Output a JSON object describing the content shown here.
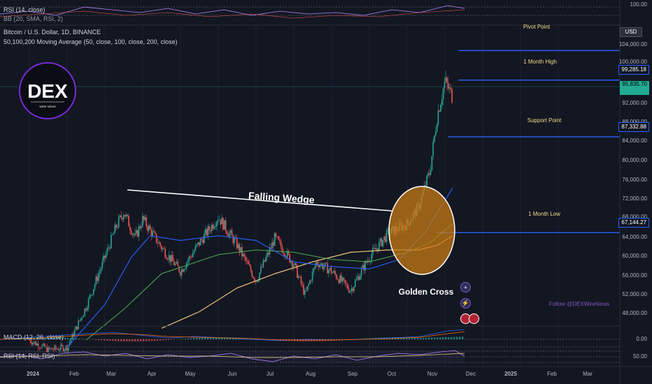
{
  "symbol_title": "Bitcoin / U.S. Dollar, 1D, BINANCE",
  "ma_legend": "50,100,200 Moving Average (50, close, 100, close, 200, close)",
  "top_indicators": {
    "rsi": "RSI (14, close)",
    "bb": "BB (20, SMA, RSI, 2)"
  },
  "bottom_indicators": {
    "macd": "MACD (12, 26, close)",
    "rsi": "RSI (14, RSI, RSI)"
  },
  "currency_button": "USD",
  "levels": {
    "pivot": "Pivot Point",
    "month_high": "1 Month High",
    "support": "Support Point",
    "month_low": "1 Month Low"
  },
  "price_tags": {
    "month_high": "99,285.18",
    "current": "95,835.70",
    "support": "87,332.88",
    "month_low": "67,144.27"
  },
  "annotations": {
    "falling_wedge": "Falling Wedge",
    "golden_cross": "Golden Cross",
    "follow": "Follow @DEXWireNews"
  },
  "logo": {
    "text": "DEX",
    "subtext": "WIRE NEWS"
  },
  "price_axis": [
    "104,000.00",
    "100,000.00",
    "92,000.00",
    "88,000.00",
    "84,000.00",
    "80,000.00",
    "76,000.00",
    "72,000.00",
    "68,000.00",
    "64,000.00",
    "60,000.00",
    "56,000.00",
    "52,000.00",
    "48,000.00"
  ],
  "top_axis_label": "100.00",
  "macd_axis_label": "0.00",
  "rsi_axis_label": "50.00",
  "time_axis": [
    "2024",
    "Feb",
    "Mar",
    "Apr",
    "May",
    "Jun",
    "Jul",
    "Aug",
    "Sep",
    "Oct",
    "Nov",
    "Dec",
    "2025",
    "Feb",
    "Mar"
  ],
  "colors": {
    "bg": "#131722",
    "up": "#26a69a",
    "down": "#ef5350",
    "ma50": "#2962ff",
    "ma100": "#4caf50",
    "ma200": "#f0c27b",
    "level": "#2962ff",
    "accent": "#f5d98b"
  },
  "chart_data": {
    "type": "candlestick",
    "price_range": [
      46000,
      108000
    ],
    "time_labels": [
      "2024",
      "Feb",
      "Mar",
      "Apr",
      "May",
      "Jun",
      "Jul",
      "Aug",
      "Sep",
      "Oct",
      "Nov",
      "Dec",
      "2025",
      "Feb",
      "Mar"
    ],
    "close_path": [
      [
        0,
        44500
      ],
      [
        0.5,
        42500
      ],
      [
        1,
        43000
      ],
      [
        1.5,
        51500
      ],
      [
        2,
        62000
      ],
      [
        2.3,
        68500
      ],
      [
        2.5,
        71500
      ],
      [
        2.8,
        66000
      ],
      [
        3,
        70000
      ],
      [
        3.5,
        64000
      ],
      [
        4,
        59000
      ],
      [
        4.5,
        65000
      ],
      [
        5,
        70500
      ],
      [
        5.5,
        64500
      ],
      [
        6,
        57000
      ],
      [
        6.5,
        66000
      ],
      [
        7,
        60500
      ],
      [
        7.3,
        54000
      ],
      [
        7.6,
        61000
      ],
      [
        8,
        59000
      ],
      [
        8.5,
        55000
      ],
      [
        9,
        62000
      ],
      [
        9.5,
        67000
      ],
      [
        10,
        69000
      ],
      [
        10.3,
        72500
      ],
      [
        10.6,
        80000
      ],
      [
        10.8,
        92000
      ],
      [
        11,
        99000
      ],
      [
        11.2,
        95800
      ]
    ],
    "moving_averages": {
      "ma50": [
        [
          1,
          43000
        ],
        [
          2,
          52000
        ],
        [
          2.7,
          62000
        ],
        [
          3.2,
          66500
        ],
        [
          4,
          65500
        ],
        [
          5,
          66500
        ],
        [
          6,
          65500
        ],
        [
          7,
          61000
        ],
        [
          8,
          60000
        ],
        [
          9,
          59500
        ],
        [
          9.8,
          61500
        ],
        [
          10.5,
          67500
        ],
        [
          11.2,
          76500
        ]
      ],
      "ma100": [
        [
          1.5,
          44500
        ],
        [
          2.5,
          51000
        ],
        [
          3.5,
          58500
        ],
        [
          5,
          62500
        ],
        [
          6,
          63500
        ],
        [
          7,
          63000
        ],
        [
          8,
          61500
        ],
        [
          9,
          61000
        ],
        [
          10,
          63000
        ],
        [
          10.6,
          65000
        ],
        [
          11.2,
          69000
        ]
      ],
      "ma200": [
        [
          3.5,
          47000
        ],
        [
          4.5,
          50500
        ],
        [
          5.5,
          55500
        ],
        [
          6.5,
          58500
        ],
        [
          7.5,
          61000
        ],
        [
          8.5,
          63000
        ],
        [
          9.5,
          63500
        ],
        [
          10.3,
          63500
        ],
        [
          10.8,
          64500
        ],
        [
          11.2,
          66500
        ]
      ]
    },
    "levels": {
      "pivot": 105500,
      "month_high": 99285.18,
      "support": 87332.88,
      "month_low": 67144.27
    },
    "wedge_line": [
      [
        2.4,
        73500
      ],
      [
        9.4,
        68500
      ]
    ],
    "annotations": [
      "Falling Wedge",
      "Golden Cross"
    ]
  }
}
